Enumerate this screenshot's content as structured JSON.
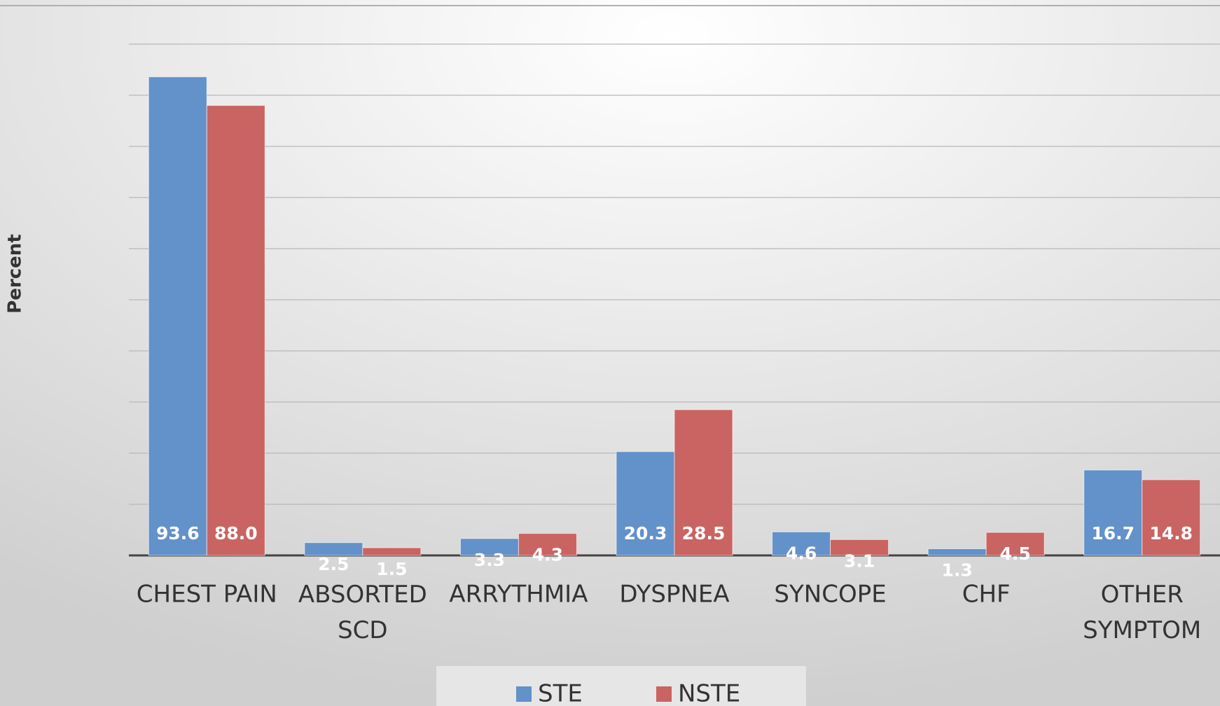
{
  "chart_data": {
    "type": "bar",
    "y_label": "Percent",
    "categories": [
      "CHEST PAIN",
      "ABSORTED SCD",
      "ARRYTHMIA",
      "DYSPNEA",
      "SYNCOPE",
      "CHF",
      "OTHER SYMPTOM"
    ],
    "series": [
      {
        "name": "STE",
        "color": "#6391c9",
        "values": [
          93.6,
          2.5,
          3.3,
          20.3,
          4.6,
          1.3,
          16.7
        ],
        "value_labels": [
          "93.6",
          "2.5",
          "3.3",
          "20.3",
          "4.6",
          "1.3",
          "16.7"
        ]
      },
      {
        "name": "NSTE",
        "color": "#c96462",
        "values": [
          88.0,
          1.5,
          4.3,
          28.5,
          3.1,
          4.5,
          14.8
        ],
        "value_labels": [
          "88.0",
          "1.5",
          "4.3",
          "28.5",
          "3.1",
          "4.5",
          "14.8"
        ]
      }
    ],
    "ylim": [
      0,
      100
    ],
    "yticks": [
      0,
      10,
      20,
      30,
      40,
      50,
      60,
      70,
      80,
      90,
      100
    ],
    "grid": true,
    "legend": "bottom"
  }
}
